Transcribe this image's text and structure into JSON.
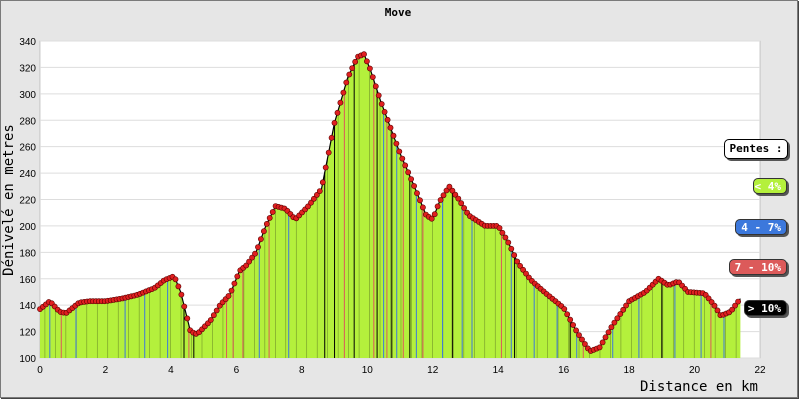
{
  "chart_data": {
    "type": "area",
    "title": "Move",
    "xlabel": "Distance en km",
    "ylabel": "Dénivelé en metres",
    "xlim": [
      0,
      22
    ],
    "ylim": [
      100,
      340
    ],
    "x_ticks": [
      "0",
      "2",
      "4",
      "6",
      "8",
      "10",
      "12",
      "14",
      "16",
      "18",
      "20",
      "22"
    ],
    "y_ticks": [
      "100",
      "120",
      "140",
      "160",
      "180",
      "200",
      "220",
      "240",
      "260",
      "280",
      "300",
      "320",
      "340"
    ],
    "grid": true,
    "legend_placement": "right",
    "legend_title": "Pentes :",
    "legend": [
      {
        "label": "< 4%",
        "color": "#b4f03c",
        "text_color": "#ffffff"
      },
      {
        "label": "4 - 7%",
        "color": "#3c78dc",
        "text_color": "#ffffff"
      },
      {
        "label": "7 - 10%",
        "color": "#dc5a5a",
        "text_color": "#ffffff"
      },
      {
        "label": "> 10%",
        "color": "#000000",
        "text_color": "#ffffff"
      }
    ],
    "fill_color": "#b4f03c",
    "marker_color": "#e02020",
    "x": [
      0,
      0.3,
      0.6,
      0.8,
      1.2,
      1.5,
      2.0,
      2.5,
      3.0,
      3.5,
      3.8,
      4.1,
      4.3,
      4.6,
      4.8,
      5.2,
      5.5,
      5.8,
      6.1,
      6.3,
      6.6,
      6.9,
      7.2,
      7.5,
      7.8,
      8.2,
      8.6,
      9.0,
      9.4,
      9.7,
      9.9,
      10.1,
      10.4,
      10.7,
      11.0,
      11.4,
      11.8,
      12.0,
      12.2,
      12.5,
      12.8,
      13.1,
      13.6,
      14.0,
      14.3,
      14.6,
      15.0,
      15.5,
      16.0,
      16.4,
      16.8,
      17.1,
      17.5,
      18.0,
      18.5,
      18.9,
      19.2,
      19.5,
      19.8,
      20.3,
      20.6,
      20.8,
      21.1,
      21.4
    ],
    "y": [
      137,
      143,
      135,
      134,
      142,
      143,
      143,
      145,
      148,
      153,
      159,
      162,
      150,
      120,
      118,
      128,
      140,
      148,
      166,
      170,
      180,
      200,
      215,
      213,
      205,
      215,
      228,
      278,
      312,
      328,
      330,
      318,
      295,
      275,
      255,
      232,
      208,
      205,
      218,
      230,
      220,
      208,
      200,
      200,
      188,
      172,
      159,
      148,
      138,
      120,
      105,
      108,
      125,
      143,
      150,
      160,
      155,
      158,
      150,
      149,
      140,
      132,
      135,
      145
    ],
    "slope_lines": [
      {
        "x": 0.3,
        "class": "4 - 7%"
      },
      {
        "x": 0.65,
        "class": "7 - 10%"
      },
      {
        "x": 1.1,
        "class": "4 - 7%"
      },
      {
        "x": 2.6,
        "class": "4 - 7%"
      },
      {
        "x": 3.2,
        "class": "4 - 7%"
      },
      {
        "x": 3.9,
        "class": "4 - 7%"
      },
      {
        "x": 4.4,
        "class": "> 10%"
      },
      {
        "x": 4.55,
        "class": "7 - 10%"
      },
      {
        "x": 4.7,
        "class": "> 10%"
      },
      {
        "x": 5.7,
        "class": "7 - 10%"
      },
      {
        "x": 5.9,
        "class": "7 - 10%"
      },
      {
        "x": 6.2,
        "class": "7 - 10%"
      },
      {
        "x": 6.7,
        "class": "4 - 7%"
      },
      {
        "x": 7.0,
        "class": "7 - 10%"
      },
      {
        "x": 7.6,
        "class": "4 - 7%"
      },
      {
        "x": 8.7,
        "class": "> 10%"
      },
      {
        "x": 9.0,
        "class": "> 10%"
      },
      {
        "x": 9.3,
        "class": "7 - 10%"
      },
      {
        "x": 9.6,
        "class": "> 10%"
      },
      {
        "x": 10.2,
        "class": "7 - 10%"
      },
      {
        "x": 10.3,
        "class": "> 10%"
      },
      {
        "x": 10.5,
        "class": "4 - 7%"
      },
      {
        "x": 10.6,
        "class": "7 - 10%"
      },
      {
        "x": 10.75,
        "class": "> 10%"
      },
      {
        "x": 10.9,
        "class": "4 - 7%"
      },
      {
        "x": 11.1,
        "class": "7 - 10%"
      },
      {
        "x": 11.3,
        "class": "> 10%"
      },
      {
        "x": 11.5,
        "class": "4 - 7%"
      },
      {
        "x": 11.7,
        "class": "7 - 10%"
      },
      {
        "x": 12.3,
        "class": "4 - 7%"
      },
      {
        "x": 12.6,
        "class": "> 10%"
      },
      {
        "x": 12.9,
        "class": "4 - 7%"
      },
      {
        "x": 13.2,
        "class": "4 - 7%"
      },
      {
        "x": 14.1,
        "class": "7 - 10%"
      },
      {
        "x": 14.4,
        "class": "4 - 7%"
      },
      {
        "x": 14.5,
        "class": "> 10%"
      },
      {
        "x": 15.1,
        "class": "4 - 7%"
      },
      {
        "x": 15.8,
        "class": "4 - 7%"
      },
      {
        "x": 16.2,
        "class": "> 10%"
      },
      {
        "x": 16.4,
        "class": "4 - 7%"
      },
      {
        "x": 16.6,
        "class": "7 - 10%"
      },
      {
        "x": 17.5,
        "class": "4 - 7%"
      },
      {
        "x": 18.3,
        "class": "4 - 7%"
      },
      {
        "x": 19.0,
        "class": "> 10%"
      },
      {
        "x": 19.4,
        "class": "4 - 7%"
      },
      {
        "x": 20.2,
        "class": "4 - 7%"
      },
      {
        "x": 20.5,
        "class": "7 - 10%"
      },
      {
        "x": 20.9,
        "class": "4 - 7%"
      }
    ]
  }
}
